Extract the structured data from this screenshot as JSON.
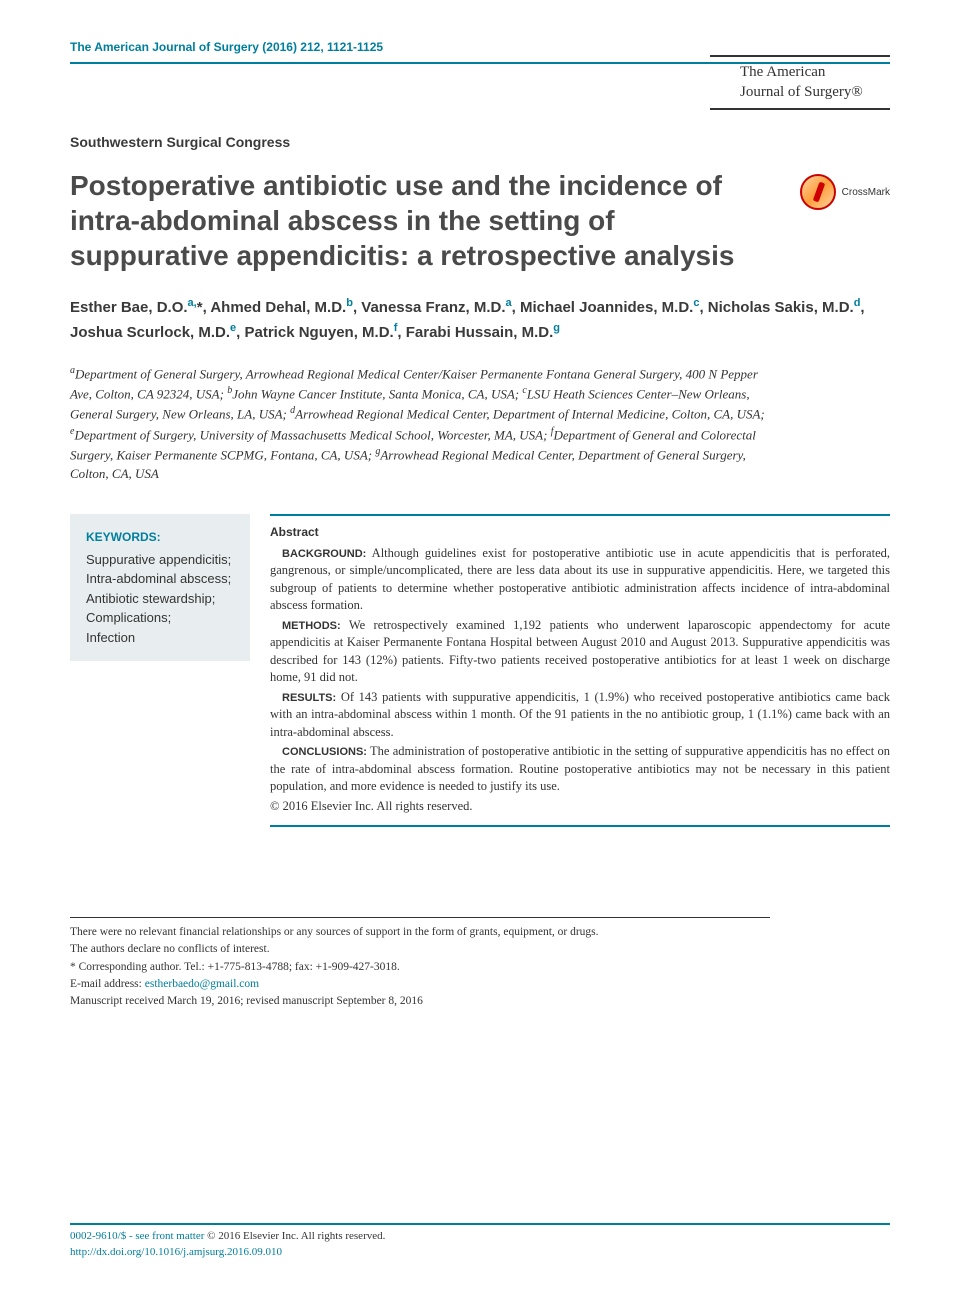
{
  "header": {
    "citation": "The American Journal of Surgery (2016) 212, 1121-1125",
    "journal_name_line1": "The American",
    "journal_name_line2": "Journal of Surgery®"
  },
  "section_label": "Southwestern Surgical Congress",
  "title": "Postoperative antibiotic use and the incidence of intra-abdominal abscess in the setting of suppurative appendicitis: a retrospective analysis",
  "crossmark_label": "CrossMark",
  "authors_html": "Esther Bae, D.O.<sup>a,</sup>*, Ahmed Dehal, M.D.<sup>b</sup>, Vanessa Franz, M.D.<sup>a</sup>, Michael Joannides, M.D.<sup>c</sup>, Nicholas Sakis, M.D.<sup>d</sup>, Joshua Scurlock, M.D.<sup>e</sup>, Patrick Nguyen, M.D.<sup>f</sup>, Farabi Hussain, M.D.<sup>g</sup>",
  "affiliations_html": "<sup>a</sup>Department of General Surgery, Arrowhead Regional Medical Center/Kaiser Permanente Fontana General Surgery, 400 N Pepper Ave, Colton, CA 92324, USA; <sup>b</sup>John Wayne Cancer Institute, Santa Monica, CA, USA; <sup>c</sup>LSU Heath Sciences Center–New Orleans, General Surgery, New Orleans, LA, USA; <sup>d</sup>Arrowhead Regional Medical Center, Department of Internal Medicine, Colton, CA, USA; <sup>e</sup>Department of Surgery, University of Massachusetts Medical School, Worcester, MA, USA; <sup>f</sup>Department of General and Colorectal Surgery, Kaiser Permanente SCPMG, Fontana, CA, USA; <sup>g</sup>Arrowhead Regional Medical Center, Department of General Surgery, Colton, CA, USA",
  "keywords": {
    "header": "KEYWORDS:",
    "items": [
      "Suppurative appendicitis;",
      "Intra-abdominal abscess;",
      "Antibiotic stewardship;",
      "Complications;",
      "Infection"
    ]
  },
  "abstract": {
    "header": "Abstract",
    "background_label": "BACKGROUND:",
    "background": "Although guidelines exist for postoperative antibiotic use in acute appendicitis that is perforated, gangrenous, or simple/uncomplicated, there are less data about its use in suppurative appendicitis. Here, we targeted this subgroup of patients to determine whether postoperative antibiotic administration affects incidence of intra-abdominal abscess formation.",
    "methods_label": "METHODS:",
    "methods": "We retrospectively examined 1,192 patients who underwent laparoscopic appendectomy for acute appendicitis at Kaiser Permanente Fontana Hospital between August 2010 and August 2013. Suppurative appendicitis was described for 143 (12%) patients. Fifty-two patients received postoperative antibiotics for at least 1 week on discharge home, 91 did not.",
    "results_label": "RESULTS:",
    "results": "Of 143 patients with suppurative appendicitis, 1 (1.9%) who received postoperative antibiotics came back with an intra-abdominal abscess within 1 month. Of the 91 patients in the no antibiotic group, 1 (1.1%) came back with an intra-abdominal abscess.",
    "conclusions_label": "CONCLUSIONS:",
    "conclusions": "The administration of postoperative antibiotic in the setting of suppurative appendicitis has no effect on the rate of intra-abdominal abscess formation. Routine postoperative antibiotics may not be necessary in this patient population, and more evidence is needed to justify its use.",
    "copyright": "© 2016 Elsevier Inc. All rights reserved."
  },
  "footnotes": {
    "line1": "There were no relevant financial relationships or any sources of support in the form of grants, equipment, or drugs.",
    "line2": "The authors declare no conflicts of interest.",
    "corr": "* Corresponding author. Tel.: +1-775-813-4788; fax: +1-909-427-3018.",
    "email_label": "E-mail address: ",
    "email": "estherbaedo@gmail.com",
    "manuscript": "Manuscript received March 19, 2016; revised manuscript September 8, 2016"
  },
  "footer": {
    "line1_prefix": "0002-9610/$ - see front matter ",
    "line1_copyright": "© 2016 Elsevier Inc. All rights reserved.",
    "doi": "http://dx.doi.org/10.1016/j.amjsurg.2016.09.010"
  },
  "colors": {
    "accent": "#007e9e",
    "text": "#333333",
    "keyword_bg": "#e8eef0"
  }
}
